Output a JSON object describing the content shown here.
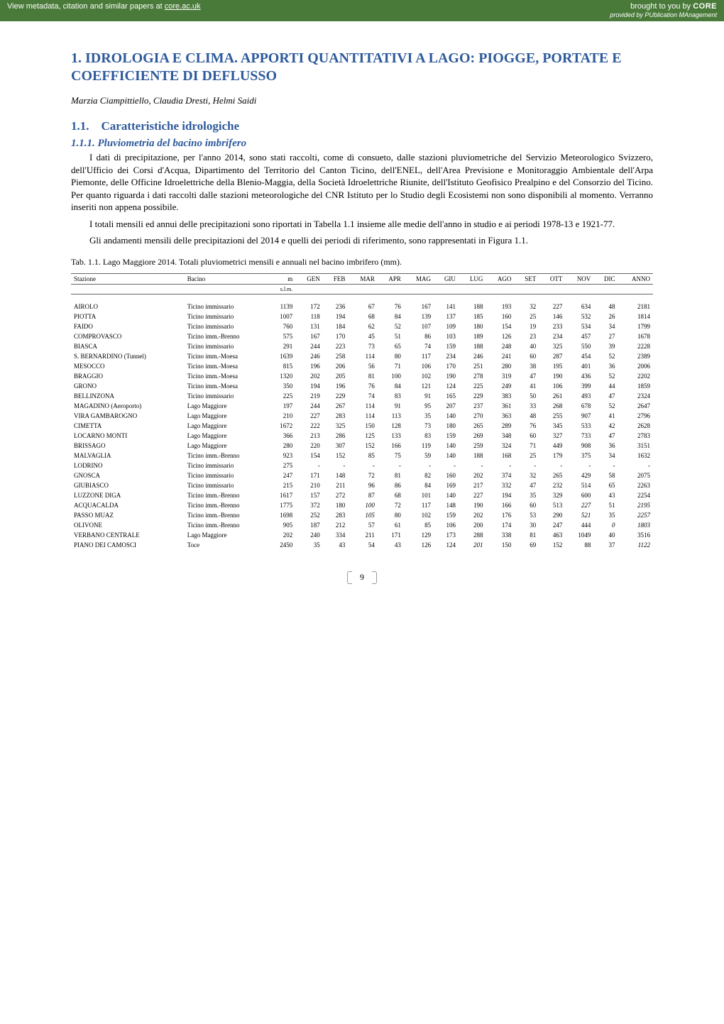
{
  "topbar": {
    "left_prefix": "View metadata, citation and similar papers at ",
    "left_link": "core.ac.uk",
    "right_prefix": "brought to you by ",
    "core": "CORE",
    "provided": "provided by PUblication MAnagement"
  },
  "title": "1. IDROLOGIA E CLIMA. APPORTI QUANTITATIVI A LAGO: PIOGGE, PORTATE E COEFFICIENTE DI DEFLUSSO",
  "authors": "Marzia Ciampittiello, Claudia Dresti, Helmi Saidi",
  "section_num": "1.1.",
  "section_title": "Caratteristiche idrologiche",
  "subsection": "1.1.1. Pluviometria del bacino imbrifero",
  "para1": "I dati di precipitazione, per l'anno 2014, sono stati raccolti, come di consueto, dalle stazioni pluviometriche del Servizio Meteorologico Svizzero, dell'Ufficio dei Corsi d'Acqua, Dipartimento del Territorio del Canton Ticino, dell'ENEL, dell'Area Previsione e Monitoraggio Ambientale dell'Arpa Piemonte, delle Officine Idroelettriche della Blenio-Maggia, della Società Idroelettriche Riunite, dell'Istituto Geofisico Prealpino e del Consorzio del Ticino. Per quanto riguarda i dati raccolti dalle stazioni meteorologiche del CNR Istituto per lo Studio degli Ecosistemi non sono disponibili al momento. Verranno inseriti non appena possibile.",
  "para2": "I totali mensili ed annui delle precipitazioni sono riportati in Tabella 1.1 insieme alle medie dell'anno in studio e ai periodi 1978-13 e 1921-77.",
  "para3": "Gli andamenti mensili delle precipitazioni del 2014 e quelli dei periodi di riferimento, sono rappresentati in Figura 1.1.",
  "table_caption": "Tab. 1.1. Lago Maggiore 2014. Totali pluviometrici mensili e annuali nel bacino imbrifero (mm).",
  "columns": [
    "Stazione",
    "Bacino",
    "m",
    "GEN",
    "FEB",
    "MAR",
    "APR",
    "MAG",
    "GIU",
    "LUG",
    "AGO",
    "SET",
    "OTT",
    "NOV",
    "DIC",
    "ANNO"
  ],
  "unit_row": [
    "",
    "",
    "s.l.m.",
    "",
    "",
    "",
    "",
    "",
    "",
    "",
    "",
    "",
    "",
    "",
    "",
    ""
  ],
  "rows": [
    [
      "AIROLO",
      "Ticino immissario",
      "1139",
      "172",
      "236",
      "67",
      "76",
      "167",
      "141",
      "188",
      "193",
      "32",
      "227",
      "634",
      "48",
      "2181"
    ],
    [
      "PIOTTA",
      "Ticino immissario",
      "1007",
      "118",
      "194",
      "68",
      "84",
      "139",
      "137",
      "185",
      "160",
      "25",
      "146",
      "532",
      "26",
      "1814"
    ],
    [
      "FAIDO",
      "Ticino immissario",
      "760",
      "131",
      "184",
      "62",
      "52",
      "107",
      "109",
      "180",
      "154",
      "19",
      "233",
      "534",
      "34",
      "1799"
    ],
    [
      "COMPROVASCO",
      "Ticino imm.-Brenno",
      "575",
      "167",
      "170",
      "45",
      "51",
      "86",
      "103",
      "189",
      "126",
      "23",
      "234",
      "457",
      "27",
      "1678"
    ],
    [
      "BIASCA",
      "Ticino immissario",
      "291",
      "244",
      "223",
      "73",
      "65",
      "74",
      "159",
      "188",
      "248",
      "40",
      "325",
      "550",
      "39",
      "2228"
    ],
    [
      "S. BERNARDINO (Tunnel)",
      "Ticino imm.-Moesa",
      "1639",
      "246",
      "258",
      "114",
      "80",
      "117",
      "234",
      "246",
      "241",
      "60",
      "287",
      "454",
      "52",
      "2389"
    ],
    [
      "MESOCCO",
      "Ticino imm.-Moesa",
      "815",
      "196",
      "206",
      "56",
      "71",
      "106",
      "170",
      "251",
      "280",
      "38",
      "195",
      "401",
      "36",
      "2006"
    ],
    [
      "BRAGGIO",
      "Ticino imm.-Moesa",
      "1320",
      "202",
      "205",
      "81",
      "100",
      "102",
      "190",
      "278",
      "319",
      "47",
      "190",
      "436",
      "52",
      "2202"
    ],
    [
      "GRONO",
      "Ticino imm.-Moesa",
      "350",
      "194",
      "196",
      "76",
      "84",
      "121",
      "124",
      "225",
      "249",
      "41",
      "106",
      "399",
      "44",
      "1859"
    ],
    [
      "BELLINZONA",
      "Ticino immissario",
      "225",
      "219",
      "229",
      "74",
      "83",
      "91",
      "165",
      "229",
      "383",
      "50",
      "261",
      "493",
      "47",
      "2324"
    ],
    [
      "MAGADINO (Aeroporto)",
      "Lago Maggiore",
      "197",
      "244",
      "267",
      "114",
      "91",
      "95",
      "207",
      "237",
      "361",
      "33",
      "268",
      "678",
      "52",
      "2647"
    ],
    [
      "VIRA GAMBAROGNO",
      "Lago Maggiore",
      "210",
      "227",
      "283",
      "114",
      "113",
      "35",
      "140",
      "270",
      "363",
      "48",
      "255",
      "907",
      "41",
      "2796"
    ],
    [
      "CIMETTA",
      "Lago Maggiore",
      "1672",
      "222",
      "325",
      "150",
      "128",
      "73",
      "180",
      "265",
      "289",
      "76",
      "345",
      "533",
      "42",
      "2628"
    ],
    [
      "LOCARNO MONTI",
      "Lago Maggiore",
      "366",
      "213",
      "286",
      "125",
      "133",
      "83",
      "159",
      "269",
      "348",
      "60",
      "327",
      "733",
      "47",
      "2783"
    ],
    [
      "BRISSAGO",
      "Lago Maggiore",
      "280",
      "220",
      "307",
      "152",
      "166",
      "119",
      "140",
      "259",
      "324",
      "71",
      "449",
      "908",
      "36",
      "3151"
    ],
    [
      "MALVAGLIA",
      "Ticino imm.-Brenno",
      "923",
      "154",
      "152",
      "85",
      "75",
      "59",
      "140",
      "188",
      "168",
      "25",
      "179",
      "375",
      "34",
      "1632"
    ],
    [
      "LODRINO",
      "Ticino immissario",
      "275",
      "-",
      "-",
      "-",
      "-",
      "-",
      "-",
      "-",
      "-",
      "-",
      "-",
      "-",
      "-",
      "-"
    ],
    [
      "GNOSCA",
      "Ticino immissario",
      "247",
      "171",
      "148",
      "72",
      "81",
      "82",
      "160",
      "202",
      "374",
      "32",
      "265",
      "429",
      "58",
      "2075"
    ],
    [
      "GIUBIASCO",
      "Ticino immissario",
      "215",
      "210",
      "211",
      "96",
      "86",
      "84",
      "169",
      "217",
      "332",
      "47",
      "232",
      "514",
      "65",
      "2263"
    ],
    [
      "LUZZONE DIGA",
      "Ticino imm.-Brenno",
      "1617",
      "157",
      "272",
      "87",
      "68",
      "101",
      "140",
      "227",
      "194",
      "35",
      "329",
      "600",
      "43",
      "2254"
    ],
    [
      "ACQUACALDA",
      "Ticino imm.-Brenno",
      "1775",
      "372",
      "180",
      "100",
      "72",
      "117",
      "148",
      "190",
      "166",
      "60",
      "513",
      "227",
      "51",
      "2195"
    ],
    [
      "PASSO MUAZ",
      "Ticino imm.-Brenno",
      "1698",
      "252",
      "283",
      "105",
      "80",
      "102",
      "159",
      "202",
      "176",
      "53",
      "290",
      "521",
      "35",
      "2257"
    ],
    [
      "OLIVONE",
      "Ticino imm.-Brenno",
      "905",
      "187",
      "212",
      "57",
      "61",
      "85",
      "106",
      "200",
      "174",
      "30",
      "247",
      "444",
      "0",
      "1803"
    ],
    [
      "VERBANO CENTRALE",
      "Lago Maggiore",
      "202",
      "240",
      "334",
      "211",
      "171",
      "129",
      "173",
      "288",
      "338",
      "81",
      "463",
      "1049",
      "40",
      "3516"
    ],
    [
      "PIANO DEI CAMOSCI",
      "Toce",
      "2450",
      "35",
      "43",
      "54",
      "43",
      "126",
      "124",
      "201",
      "150",
      "69",
      "152",
      "88",
      "37",
      "1122"
    ]
  ],
  "italic_cells": {
    "20": [
      5,
      13,
      15
    ],
    "21": [
      5,
      13,
      15
    ],
    "22": [
      14,
      15
    ],
    "24": [
      9,
      15
    ]
  },
  "page_number": "9",
  "colors": {
    "heading": "#2e5a9c",
    "topbar_bg": "#4a7a3a",
    "rule": "#666666"
  }
}
